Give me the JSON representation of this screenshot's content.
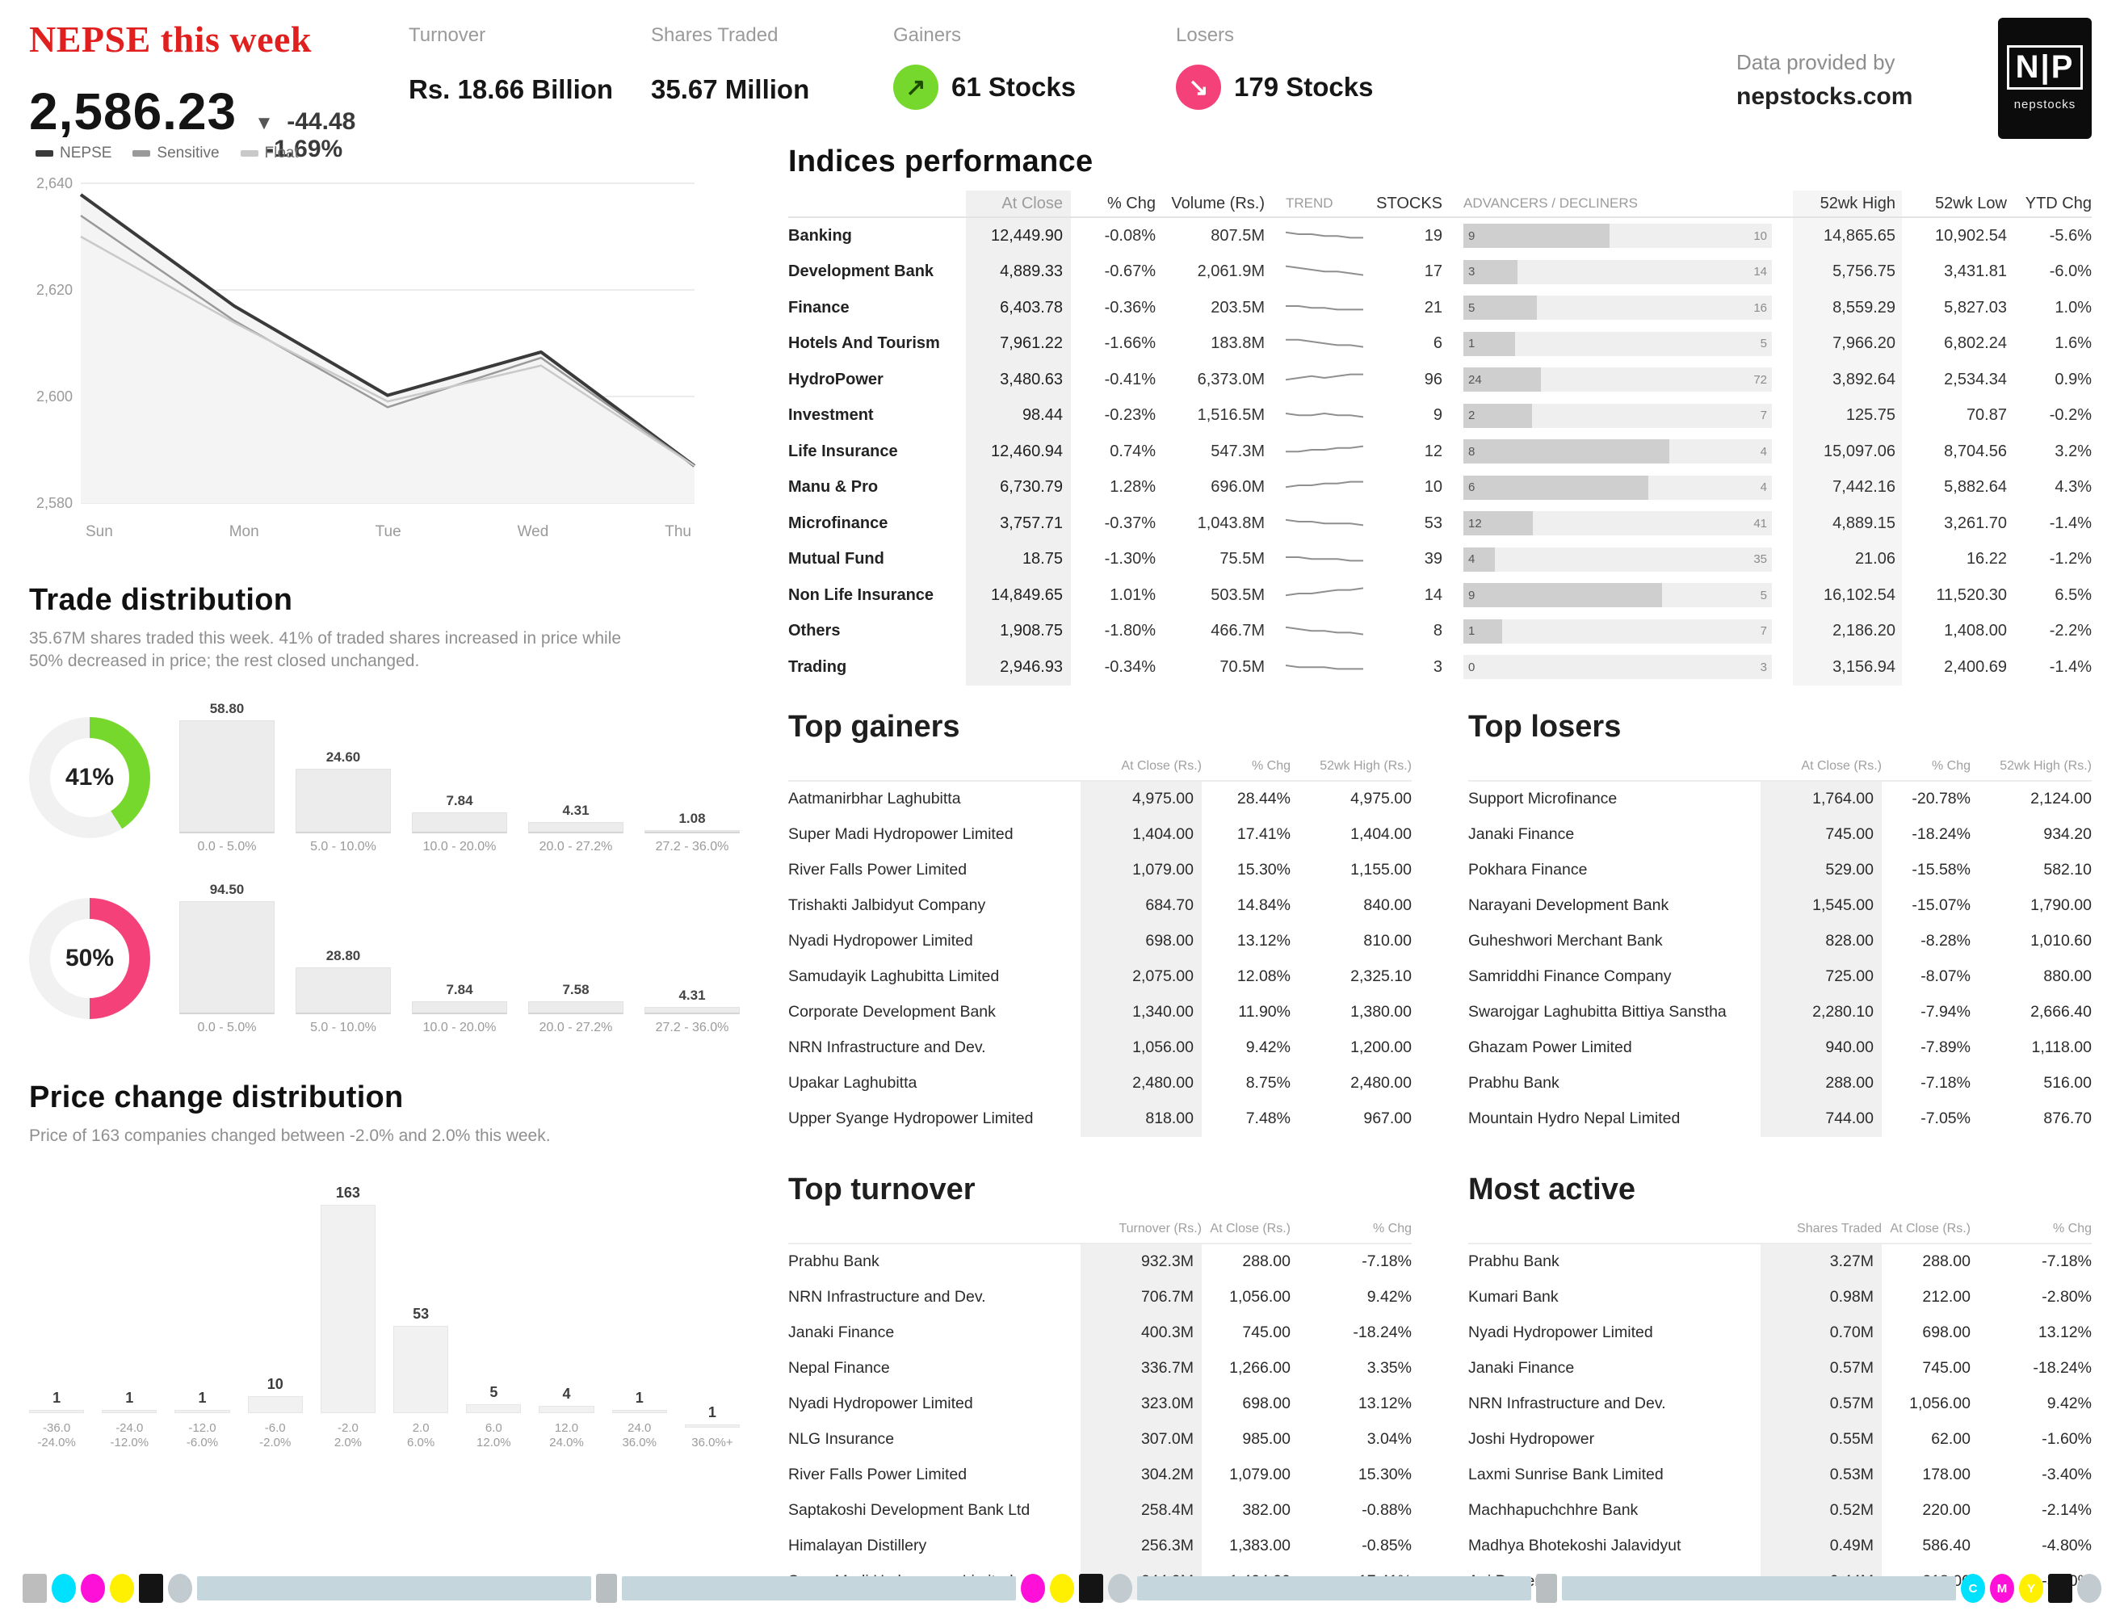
{
  "header": {
    "title": "NEPSE this week",
    "index": {
      "value": "2,586.23",
      "direction": "▼",
      "change": "-44.48",
      "change_pct": "-1.69%"
    },
    "stats": [
      {
        "label": "Turnover",
        "value": "Rs. 18.66 Billion"
      },
      {
        "label": "Shares Traded",
        "value": "35.67 Million"
      },
      {
        "label": "Gainers",
        "value": "61 Stocks",
        "icon": "arrow-up-right-icon",
        "color": "#76d72c",
        "glyph": "↗"
      },
      {
        "label": "Losers",
        "value": "179 Stocks",
        "icon": "arrow-down-right-icon",
        "color": "#f4417a",
        "glyph": "↘"
      }
    ],
    "provider": {
      "line1": "Data provided by",
      "line2": "nepstocks.com",
      "logo_glyph": "N|P",
      "logo_sub": "nepstocks"
    }
  },
  "index_chart": {
    "chart_data": {
      "type": "line",
      "title": "NEPSE index, this week",
      "x": [
        "Sun",
        "Mon",
        "Tue",
        "Wed",
        "Thu"
      ],
      "series": [
        {
          "name": "NEPSE",
          "values": [
            2630.71,
            2612.45,
            2597.8,
            2604.9,
            2586.23
          ],
          "color": "#3a3a3a"
        },
        {
          "name": "Sensitive",
          "values": [
            494.2,
            490.8,
            488.0,
            489.6,
            486.1
          ],
          "color": "#9a9a9a"
        },
        {
          "name": "Float",
          "values": [
            181.4,
            180.2,
            179.1,
            179.6,
            178.2
          ],
          "color": "#c9c9c9"
        }
      ],
      "yticks": [
        "2,640",
        "2,620",
        "2,600",
        "2,580"
      ],
      "ylim": [
        2580,
        2640
      ],
      "grid": true,
      "legend_position": "top-left"
    }
  },
  "indices": {
    "title": "Indices performance",
    "columns": [
      "",
      "At Close",
      "% Chg",
      "Volume (Rs.)",
      "TREND",
      "STOCKS",
      "ADVANCERS / DECLINERS",
      "52wk High",
      "52wk Low",
      "YTD Chg"
    ],
    "rows": [
      {
        "name": "Banking",
        "close": "12,449.90",
        "chg": "-0.08%",
        "vol": "807.5M",
        "stocks": "19",
        "adv": 9,
        "dec": 10,
        "high": "14,865.65",
        "low": "10,902.54",
        "ytd": "-5.6%",
        "trend": [
          6,
          5,
          5,
          4,
          4,
          3,
          3
        ]
      },
      {
        "name": "Development Bank",
        "close": "4,889.33",
        "chg": "-0.67%",
        "vol": "2,061.9M",
        "stocks": "17",
        "adv": 3,
        "dec": 14,
        "high": "5,756.75",
        "low": "3,431.81",
        "ytd": "-6.0%",
        "trend": [
          7,
          6,
          5,
          4,
          4,
          3,
          2
        ]
      },
      {
        "name": "Finance",
        "close": "6,403.78",
        "chg": "-0.36%",
        "vol": "203.5M",
        "stocks": "21",
        "adv": 5,
        "dec": 16,
        "high": "8,559.29",
        "low": "5,827.03",
        "ytd": "1.0%",
        "trend": [
          5,
          5,
          4,
          4,
          3,
          3,
          3
        ]
      },
      {
        "name": "Hotels And Tourism",
        "close": "7,961.22",
        "chg": "-1.66%",
        "vol": "183.8M",
        "stocks": "6",
        "adv": 1,
        "dec": 5,
        "high": "7,966.20",
        "low": "6,802.24",
        "ytd": "1.6%",
        "trend": [
          6,
          6,
          5,
          4,
          3,
          3,
          2
        ]
      },
      {
        "name": "HydroPower",
        "close": "3,480.63",
        "chg": "-0.41%",
        "vol": "6,373.0M",
        "stocks": "96",
        "adv": 24,
        "dec": 72,
        "high": "3,892.64",
        "low": "2,534.34",
        "ytd": "0.9%",
        "trend": [
          4,
          5,
          6,
          5,
          6,
          7,
          7
        ]
      },
      {
        "name": "Investment",
        "close": "98.44",
        "chg": "-0.23%",
        "vol": "1,516.5M",
        "stocks": "9",
        "adv": 2,
        "dec": 7,
        "high": "125.75",
        "low": "70.87",
        "ytd": "-0.2%",
        "trend": [
          5,
          4,
          4,
          5,
          4,
          4,
          3
        ]
      },
      {
        "name": "Life Insurance",
        "close": "12,460.94",
        "chg": "0.74%",
        "vol": "547.3M",
        "stocks": "12",
        "adv": 8,
        "dec": 4,
        "high": "15,097.06",
        "low": "8,704.56",
        "ytd": "3.2%",
        "trend": [
          4,
          4,
          5,
          5,
          6,
          6,
          7
        ]
      },
      {
        "name": "Manu & Pro",
        "close": "6,730.79",
        "chg": "1.28%",
        "vol": "696.0M",
        "stocks": "10",
        "adv": 6,
        "dec": 4,
        "high": "7,442.16",
        "low": "5,882.64",
        "ytd": "4.3%",
        "trend": [
          4,
          5,
          5,
          6,
          6,
          7,
          7
        ]
      },
      {
        "name": "Microfinance",
        "close": "3,757.71",
        "chg": "-0.37%",
        "vol": "1,043.8M",
        "stocks": "53",
        "adv": 12,
        "dec": 41,
        "high": "4,889.15",
        "low": "3,261.70",
        "ytd": "-1.4%",
        "trend": [
          6,
          5,
          5,
          4,
          4,
          4,
          3
        ]
      },
      {
        "name": "Mutual Fund",
        "close": "18.75",
        "chg": "-1.30%",
        "vol": "75.5M",
        "stocks": "39",
        "adv": 4,
        "dec": 35,
        "high": "21.06",
        "low": "16.22",
        "ytd": "-1.2%",
        "trend": [
          5,
          5,
          4,
          4,
          4,
          3,
          3
        ]
      },
      {
        "name": "Non Life Insurance",
        "close": "14,849.65",
        "chg": "1.01%",
        "vol": "503.5M",
        "stocks": "14",
        "adv": 9,
        "dec": 5,
        "high": "16,102.54",
        "low": "11,520.30",
        "ytd": "6.5%",
        "trend": [
          4,
          5,
          5,
          6,
          7,
          7,
          8
        ]
      },
      {
        "name": "Others",
        "close": "1,908.75",
        "chg": "-1.80%",
        "vol": "466.7M",
        "stocks": "8",
        "adv": 1,
        "dec": 7,
        "high": "2,186.20",
        "low": "1,408.00",
        "ytd": "-2.2%",
        "trend": [
          6,
          5,
          4,
          4,
          3,
          3,
          2
        ]
      },
      {
        "name": "Trading",
        "close": "2,946.93",
        "chg": "-0.34%",
        "vol": "70.5M",
        "stocks": "3",
        "adv": 0,
        "dec": 3,
        "high": "3,156.94",
        "low": "2,400.69",
        "ytd": "-1.4%",
        "trend": [
          5,
          4,
          4,
          4,
          3,
          3,
          3
        ]
      }
    ]
  },
  "top_gainers": {
    "title": "Top gainers",
    "columns": [
      "",
      "At Close (Rs.)",
      "% Chg",
      "52wk High (Rs.)"
    ],
    "rows": [
      {
        "name": "Aatmanirbhar Laghubitta",
        "n1": "4,975.00",
        "n2": "28.44%",
        "n3": "4,975.00"
      },
      {
        "name": "Super Madi Hydropower Limited",
        "n1": "1,404.00",
        "n2": "17.41%",
        "n3": "1,404.00"
      },
      {
        "name": "River Falls Power Limited",
        "n1": "1,079.00",
        "n2": "15.30%",
        "n3": "1,155.00"
      },
      {
        "name": "Trishakti Jalbidyut Company",
        "n1": "684.70",
        "n2": "14.84%",
        "n3": "840.00"
      },
      {
        "name": "Nyadi Hydropower Limited",
        "n1": "698.00",
        "n2": "13.12%",
        "n3": "810.00"
      },
      {
        "name": "Samudayik Laghubitta Limited",
        "n1": "2,075.00",
        "n2": "12.08%",
        "n3": "2,325.10"
      },
      {
        "name": "Corporate Development Bank",
        "n1": "1,340.00",
        "n2": "11.90%",
        "n3": "1,380.00"
      },
      {
        "name": "NRN Infrastructure and Dev.",
        "n1": "1,056.00",
        "n2": "9.42%",
        "n3": "1,200.00"
      },
      {
        "name": "Upakar Laghubitta",
        "n1": "2,480.00",
        "n2": "8.75%",
        "n3": "2,480.00"
      },
      {
        "name": "Upper Syange Hydropower Limited",
        "n1": "818.00",
        "n2": "7.48%",
        "n3": "967.00"
      }
    ]
  },
  "top_losers": {
    "title": "Top losers",
    "columns": [
      "",
      "At Close (Rs.)",
      "% Chg",
      "52wk High (Rs.)"
    ],
    "rows": [
      {
        "name": "Support Microfinance",
        "n1": "1,764.00",
        "n2": "-20.78%",
        "n3": "2,124.00"
      },
      {
        "name": "Janaki Finance",
        "n1": "745.00",
        "n2": "-18.24%",
        "n3": "934.20"
      },
      {
        "name": "Pokhara Finance",
        "n1": "529.00",
        "n2": "-15.58%",
        "n3": "582.10"
      },
      {
        "name": "Narayani Development Bank",
        "n1": "1,545.00",
        "n2": "-15.07%",
        "n3": "1,790.00"
      },
      {
        "name": "Guheshwori Merchant Bank",
        "n1": "828.00",
        "n2": "-8.28%",
        "n3": "1,010.60"
      },
      {
        "name": "Samriddhi Finance Company",
        "n1": "725.00",
        "n2": "-8.07%",
        "n3": "880.00"
      },
      {
        "name": "Swarojgar Laghubitta Bittiya Sanstha",
        "n1": "2,280.10",
        "n2": "-7.94%",
        "n3": "2,666.40"
      },
      {
        "name": "Ghazam Power Limited",
        "n1": "940.00",
        "n2": "-7.89%",
        "n3": "1,118.00"
      },
      {
        "name": "Prabhu Bank",
        "n1": "288.00",
        "n2": "-7.18%",
        "n3": "516.00"
      },
      {
        "name": "Mountain Hydro Nepal Limited",
        "n1": "744.00",
        "n2": "-7.05%",
        "n3": "876.70"
      }
    ]
  },
  "top_turnover": {
    "title": "Top turnover",
    "columns": [
      "",
      "Turnover (Rs.)",
      "At Close (Rs.)",
      "% Chg"
    ],
    "rows": [
      {
        "name": "Prabhu Bank",
        "n1": "932.3M",
        "n2": "288.00",
        "n3": "-7.18%"
      },
      {
        "name": "NRN Infrastructure and Dev.",
        "n1": "706.7M",
        "n2": "1,056.00",
        "n3": "9.42%"
      },
      {
        "name": "Janaki Finance",
        "n1": "400.3M",
        "n2": "745.00",
        "n3": "-18.24%"
      },
      {
        "name": "Nepal Finance",
        "n1": "336.7M",
        "n2": "1,266.00",
        "n3": "3.35%"
      },
      {
        "name": "Nyadi Hydropower Limited",
        "n1": "323.0M",
        "n2": "698.00",
        "n3": "13.12%"
      },
      {
        "name": "NLG Insurance",
        "n1": "307.0M",
        "n2": "985.00",
        "n3": "3.04%"
      },
      {
        "name": "River Falls Power Limited",
        "n1": "304.2M",
        "n2": "1,079.00",
        "n3": "15.30%"
      },
      {
        "name": "Saptakoshi Development Bank Ltd",
        "n1": "258.4M",
        "n2": "382.00",
        "n3": "-0.88%"
      },
      {
        "name": "Himalayan Distillery",
        "n1": "256.3M",
        "n2": "1,383.00",
        "n3": "-0.85%"
      },
      {
        "name": "Super Madi Hydropower Limited",
        "n1": "244.9M",
        "n2": "1,404.00",
        "n3": "17.41%"
      }
    ]
  },
  "most_active": {
    "title": "Most active",
    "columns": [
      "",
      "Shares Traded",
      "At Close (Rs.)",
      "% Chg"
    ],
    "rows": [
      {
        "name": "Prabhu Bank",
        "n1": "3.27M",
        "n2": "288.00",
        "n3": "-7.18%"
      },
      {
        "name": "Kumari Bank",
        "n1": "0.98M",
        "n2": "212.00",
        "n3": "-2.80%"
      },
      {
        "name": "Nyadi Hydropower Limited",
        "n1": "0.70M",
        "n2": "698.00",
        "n3": "13.12%"
      },
      {
        "name": "Janaki Finance",
        "n1": "0.57M",
        "n2": "745.00",
        "n3": "-18.24%"
      },
      {
        "name": "NRN Infrastructure and Dev.",
        "n1": "0.57M",
        "n2": "1,056.00",
        "n3": "9.42%"
      },
      {
        "name": "Joshi Hydropower",
        "n1": "0.55M",
        "n2": "62.00",
        "n3": "-1.60%"
      },
      {
        "name": "Laxmi Sunrise Bank Limited",
        "n1": "0.53M",
        "n2": "178.00",
        "n3": "-3.40%"
      },
      {
        "name": "Machhapuchchhre Bank",
        "n1": "0.52M",
        "n2": "220.00",
        "n3": "-2.14%"
      },
      {
        "name": "Madhya Bhotekoshi Jalavidyut",
        "n1": "0.49M",
        "n2": "586.40",
        "n3": "-4.80%"
      },
      {
        "name": "Api Power",
        "n1": "0.44M",
        "n2": "218.00",
        "n3": "-3.20%"
      }
    ]
  },
  "trade_distribution": {
    "title": "Trade distribution",
    "desc": "35.67M shares traded this week. 41% of traded shares increased in price while 50% decreased in price; the rest closed unchanged.",
    "donuts": [
      {
        "pct": 41,
        "pct_label": "41%",
        "color": "#76d72c"
      },
      {
        "pct": 50,
        "pct_label": "50%",
        "color": "#f4417a"
      }
    ],
    "chart_data": [
      {
        "type": "bar",
        "title": "Gainers by price change",
        "categories": [
          "0.0 - 5.0%",
          "5.0 - 10.0%",
          "10.0 - 20.0%",
          "20.0 - 27.2%",
          "27.2 - 36.0%"
        ],
        "values": [
          58.8,
          24.6,
          7.84,
          4.31,
          1.08
        ]
      },
      {
        "type": "bar",
        "title": "Losers by price change",
        "categories": [
          "0.0 - 5.0%",
          "5.0 - 10.0%",
          "10.0 - 20.0%",
          "20.0 - 27.2%",
          "27.2 - 36.0%"
        ],
        "values": [
          94.5,
          28.8,
          7.84,
          7.58,
          4.31
        ]
      }
    ]
  },
  "price_change_distribution": {
    "title": "Price change distribution",
    "desc": "Price of 163 companies changed between -2.0% and 2.0% this week.",
    "chart_data": {
      "type": "bar",
      "title": "Price change distribution",
      "categories": [
        "-36.0 - -24.0%",
        "-24.0 - -12.0%",
        "-12.0 - -6.0%",
        "-6.0 - -2.0%",
        "-2.0 - 2.0%",
        "2.0 - 6.0%",
        "6.0 - 12.0%",
        "12.0 - 24.0%",
        "24.0 - 36.0%",
        "36.0%+"
      ],
      "values": [
        1,
        1,
        1,
        10,
        163,
        53,
        5,
        4,
        1,
        1
      ],
      "ylim": [
        0,
        170
      ]
    }
  },
  "footer": {
    "name": "cmyk-calibration-strip",
    "letters": [
      "C",
      "M",
      "Y"
    ],
    "colors": {
      "cyan": "#00e0ff",
      "magenta": "#ff10d8",
      "yellow": "#ffef00",
      "black": "#141414",
      "silver": "#c2cbd0",
      "gray": "#bdbdbd",
      "bar": "#c5d6dd"
    }
  }
}
